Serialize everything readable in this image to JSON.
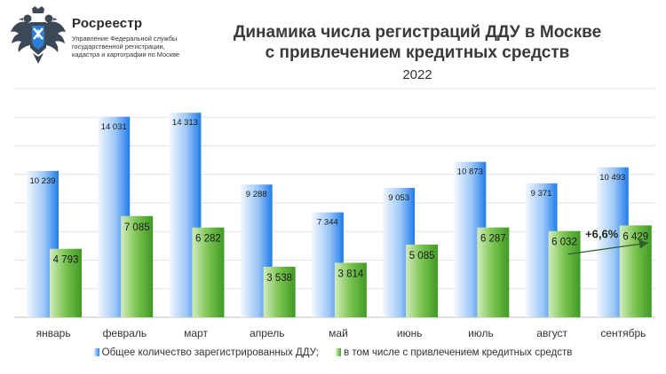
{
  "header": {
    "org_name": "Росреестр",
    "org_sub_lines": [
      "Управление Федеральной службы",
      "государственной регистрации,",
      "кадастра и картографии по Москве"
    ],
    "logo_icon": "rosreestr-eagle-emblem"
  },
  "chart_data": {
    "type": "bar",
    "title_lines": [
      "Динамика числа регистраций ДДУ в Москве",
      "с привлечением кредитных средств"
    ],
    "subtitle": "2022",
    "categories": [
      "январь",
      "февраль",
      "март",
      "апрель",
      "май",
      "июнь",
      "июль",
      "август",
      "сентябрь"
    ],
    "series": [
      {
        "name": "Общее количество зарегистрированных ДДУ;",
        "values": [
          10239,
          14031,
          14313,
          9288,
          7344,
          9053,
          10873,
          9371,
          10493
        ],
        "labels": [
          "10 239",
          "14 031",
          "14 313",
          "9 288",
          "7 344",
          "9 053",
          "10 873",
          "9 371",
          "10 493"
        ],
        "color": "#2a86f0"
      },
      {
        "name": "в том числе с привлечением кредитных средств",
        "values": [
          4793,
          7085,
          6282,
          3538,
          3814,
          5085,
          6287,
          6032,
          6429
        ],
        "labels": [
          "4 793",
          "7 085",
          "6 282",
          "3 538",
          "3 814",
          "5 085",
          "6 287",
          "6 032",
          "6 429"
        ],
        "color": "#4aa52c"
      }
    ],
    "ylim": [
      0,
      16000
    ],
    "grid": true,
    "legend_position": "bottom",
    "annotation": {
      "text": "+6,6%",
      "from_category": "август",
      "to_category": "сентябрь"
    }
  }
}
